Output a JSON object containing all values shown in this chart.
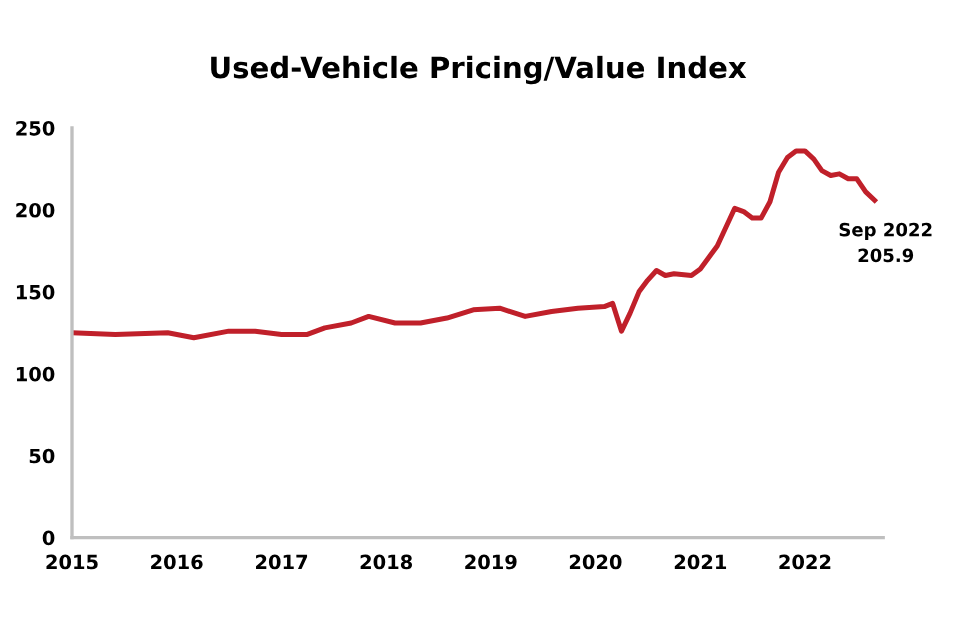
{
  "chart_data": {
    "type": "line",
    "title": "Used-Vehicle Pricing/Value Index",
    "x": [
      "2015-01",
      "2015-06",
      "2015-12",
      "2016-03",
      "2016-07",
      "2016-10",
      "2017-01",
      "2017-04",
      "2017-06",
      "2017-09",
      "2017-11",
      "2018-02",
      "2018-05",
      "2018-08",
      "2018-11",
      "2019-02",
      "2019-05",
      "2019-08",
      "2019-11",
      "2020-02",
      "2020-03",
      "2020-04",
      "2020-05",
      "2020-06",
      "2020-07",
      "2020-08",
      "2020-09",
      "2020-10",
      "2020-12",
      "2021-01",
      "2021-03",
      "2021-05",
      "2021-06",
      "2021-07",
      "2021-08",
      "2021-09",
      "2021-10",
      "2021-11",
      "2021-12",
      "2022-01",
      "2022-02",
      "2022-03",
      "2022-04",
      "2022-05",
      "2022-06",
      "2022-07",
      "2022-08",
      "2022-09"
    ],
    "series": [
      {
        "color": "#c0202a",
        "values": [
          125,
          124,
          125,
          122,
          126,
          126,
          124,
          124,
          128,
          131,
          135,
          131,
          131,
          134,
          139,
          140,
          135,
          138,
          140,
          141,
          143,
          126,
          137,
          150,
          157,
          163,
          160,
          161,
          160,
          164,
          178,
          201,
          199,
          195,
          195,
          205,
          223,
          232,
          236,
          236,
          231,
          224,
          221,
          222,
          219,
          219,
          211,
          205.9
        ]
      }
    ],
    "annotations": [
      {
        "text": "Sep 2022\n205.9",
        "x": "2022-09",
        "y": 205.9
      }
    ],
    "xlim": [
      "2015-01",
      "2022-10"
    ],
    "xticks": [
      "2015",
      "2016",
      "2017",
      "2018",
      "2019",
      "2020",
      "2021",
      "2022"
    ],
    "ylim": [
      0,
      250
    ],
    "yticks": [
      0,
      50,
      100,
      150,
      200,
      250
    ],
    "grid": false,
    "legend": false,
    "marker": "none",
    "line_style": "solid"
  }
}
